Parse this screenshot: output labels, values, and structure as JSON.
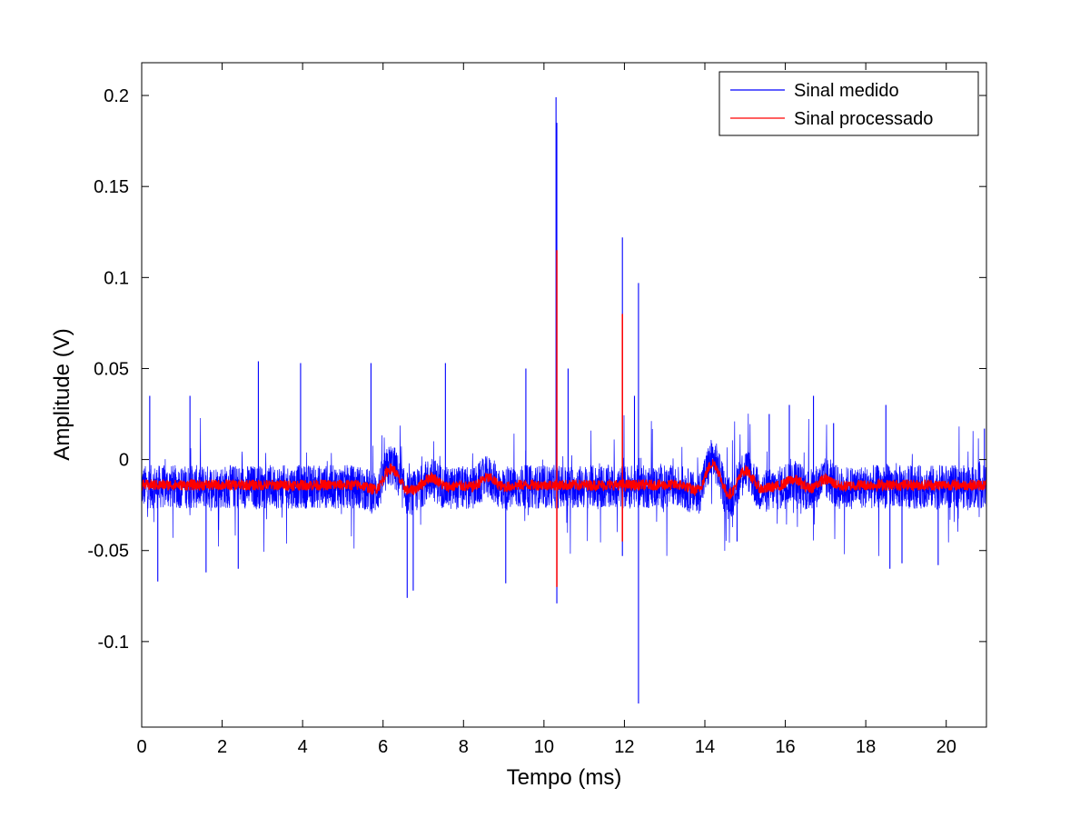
{
  "chart_data": {
    "type": "line",
    "xlabel": "Tempo (ms)",
    "ylabel": "Amplitude (V)",
    "xlim": [
      0,
      21
    ],
    "ylim": [
      -0.147,
      0.218
    ],
    "x_ticks": [
      0,
      2,
      4,
      6,
      8,
      10,
      12,
      14,
      16,
      18,
      20
    ],
    "x_tick_labels": [
      "0",
      "2",
      "4",
      "6",
      "8",
      "10",
      "12",
      "14",
      "16",
      "18",
      "20"
    ],
    "y_ticks": [
      -0.1,
      -0.05,
      0,
      0.05,
      0.1,
      0.15,
      0.2
    ],
    "y_tick_labels": [
      "-0.1",
      "-0.05",
      "0",
      "0.05",
      "0.1",
      "0.15",
      "0.2"
    ],
    "grid": false,
    "legend_position": "top-right",
    "series": [
      {
        "name": "Sinal medido",
        "color": "#0000ff",
        "baseline": -0.015,
        "noise_band": 0.012,
        "oscillations": [
          {
            "t": 6.2,
            "amp": 0.012
          },
          {
            "t": 7.2,
            "amp": 0.004
          },
          {
            "t": 8.6,
            "amp": 0.005
          },
          {
            "t": 14.2,
            "amp": 0.015
          },
          {
            "t": 15.0,
            "amp": 0.01
          },
          {
            "t": 16.2,
            "amp": 0.004
          },
          {
            "t": 17.0,
            "amp": 0.004
          }
        ],
        "spikes": [
          {
            "x": 10.3,
            "y": 0.199
          },
          {
            "x": 10.32,
            "y": 0.185
          },
          {
            "x": 11.95,
            "y": 0.122
          },
          {
            "x": 12.35,
            "y": 0.097
          },
          {
            "x": 12.35,
            "y": -0.134
          },
          {
            "x": 10.32,
            "y": -0.079
          },
          {
            "x": 11.95,
            "y": -0.053
          },
          {
            "x": 2.9,
            "y": 0.054
          },
          {
            "x": 3.95,
            "y": 0.053
          },
          {
            "x": 5.7,
            "y": 0.053
          },
          {
            "x": 7.55,
            "y": 0.053
          },
          {
            "x": 9.55,
            "y": 0.05
          },
          {
            "x": 10.6,
            "y": 0.05
          },
          {
            "x": 12.25,
            "y": 0.035
          },
          {
            "x": 6.6,
            "y": -0.076
          },
          {
            "x": 6.75,
            "y": -0.072
          },
          {
            "x": 9.05,
            "y": -0.068
          },
          {
            "x": 0.4,
            "y": -0.067
          },
          {
            "x": 1.6,
            "y": -0.062
          },
          {
            "x": 2.4,
            "y": -0.06
          },
          {
            "x": 14.8,
            "y": -0.045
          },
          {
            "x": 18.6,
            "y": -0.06
          },
          {
            "x": 18.9,
            "y": -0.057
          },
          {
            "x": 19.8,
            "y": -0.058
          },
          {
            "x": 18.5,
            "y": 0.03
          },
          {
            "x": 15.6,
            "y": 0.025
          },
          {
            "x": 16.1,
            "y": 0.03
          },
          {
            "x": 16.7,
            "y": 0.035
          },
          {
            "x": 17.2,
            "y": 0.02
          },
          {
            "x": 0.2,
            "y": 0.035
          },
          {
            "x": 1.2,
            "y": 0.035
          },
          {
            "x": 20.95,
            "y": 0.017
          }
        ]
      },
      {
        "name": "Sinal processado",
        "color": "#ff0000",
        "baseline": -0.014,
        "noise_band": 0.003,
        "oscillations": [
          {
            "t": 6.2,
            "amp": 0.009
          },
          {
            "t": 7.2,
            "amp": 0.004
          },
          {
            "t": 8.6,
            "amp": 0.004
          },
          {
            "t": 14.2,
            "amp": 0.012
          },
          {
            "t": 15.0,
            "amp": 0.008
          },
          {
            "t": 16.2,
            "amp": 0.003
          },
          {
            "t": 17.0,
            "amp": 0.003
          }
        ],
        "spikes": [
          {
            "x": 10.32,
            "y": 0.115
          },
          {
            "x": 10.32,
            "y": -0.07
          },
          {
            "x": 11.95,
            "y": 0.08
          },
          {
            "x": 11.95,
            "y": -0.045
          }
        ]
      }
    ]
  }
}
